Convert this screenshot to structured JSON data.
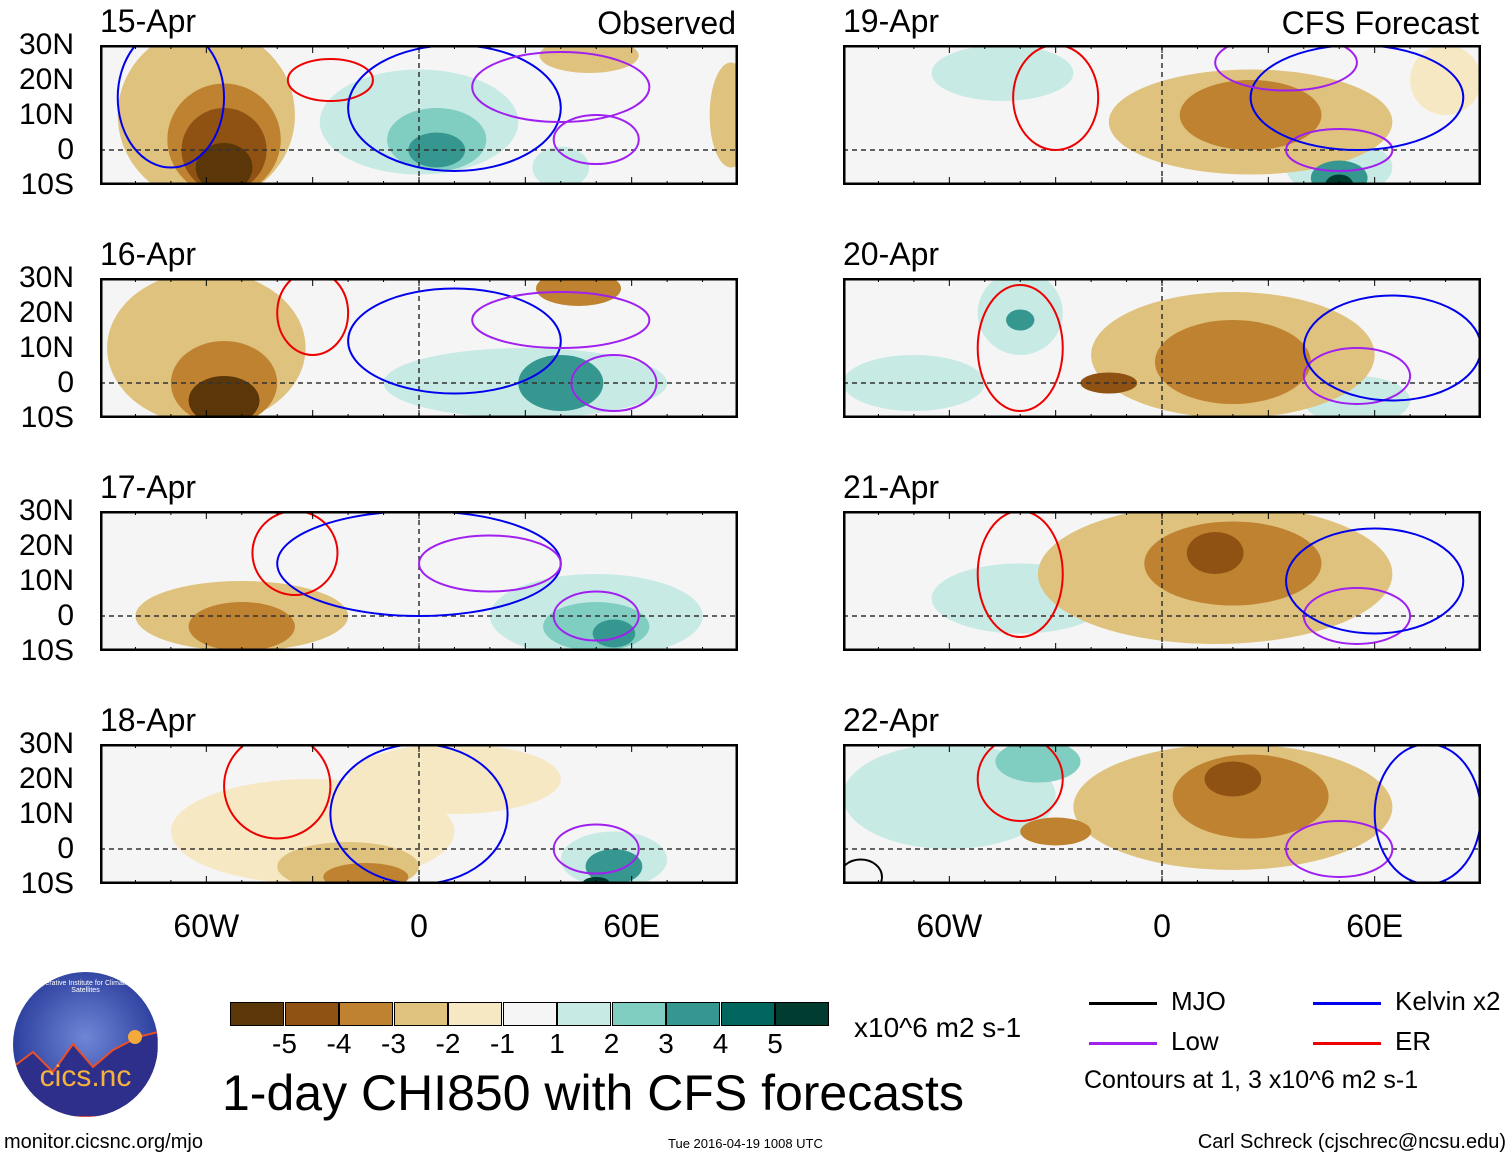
{
  "headers": {
    "left": "Observed",
    "right": "CFS Forecast"
  },
  "lat_labels": [
    "30N",
    "20N",
    "10N",
    "0",
    "10S"
  ],
  "lon_labels": [
    "60W",
    "0",
    "60E"
  ],
  "colorbar": {
    "colors": [
      "#5a3608",
      "#8f5213",
      "#be8231",
      "#dfc27d",
      "#f6e8c3",
      "#f5f5f5",
      "#c7eae5",
      "#80cdc1",
      "#35978f",
      "#01665e",
      "#003c30"
    ],
    "labels": [
      "-5",
      "-4",
      "-3",
      "-2",
      "-1",
      "1",
      "2",
      "3",
      "4",
      "5"
    ],
    "units": "x10^6 m2 s-1"
  },
  "legend": {
    "items": [
      {
        "label": "MJO",
        "color": "#000000"
      },
      {
        "label": "Kelvin x2",
        "color": "#0000ee"
      },
      {
        "label": "Low",
        "color": "#a020f0"
      },
      {
        "label": "ER",
        "color": "#ee0000"
      }
    ],
    "note": "Contours at 1, 3 x10^6 m2 s-1"
  },
  "title": "1-day CHI850 with CFS forecasts",
  "logo_text": "cics.nc",
  "logo_ring": "Cooperative Institute for Climate and Satellites",
  "footer": {
    "left": "monitor.cicsnc.org/mjo",
    "center": "Tue 2016-04-19 1008 UTC",
    "right": "Carl Schreck (cjschrec@ncsu.edu)"
  },
  "chart_data": {
    "type": "heatmap",
    "variable": "CHI850 anomaly",
    "lon_range": [
      -90,
      90
    ],
    "lat_range": [
      -10,
      30
    ],
    "panels": [
      {
        "date": "15-Apr",
        "col": "left",
        "row": 0,
        "blobs": [
          [
            -60,
            10,
            25,
            25,
            -2
          ],
          [
            -55,
            3,
            16,
            16,
            -3
          ],
          [
            -55,
            0,
            12,
            12,
            -4
          ],
          [
            -55,
            -5,
            8,
            7,
            -5
          ],
          [
            0,
            8,
            28,
            15,
            1
          ],
          [
            5,
            3,
            14,
            9,
            2
          ],
          [
            5,
            0,
            8,
            5,
            3
          ],
          [
            40,
            -5,
            8,
            6,
            1
          ],
          [
            48,
            27,
            14,
            5,
            -2
          ],
          [
            88,
            10,
            6,
            15,
            -2
          ]
        ],
        "contours": [
          [
            -70,
            15,
            15,
            20,
            "kelvin"
          ],
          [
            -25,
            20,
            12,
            6,
            "er"
          ],
          [
            10,
            12,
            30,
            18,
            "kelvin"
          ],
          [
            50,
            3,
            12,
            7,
            "low"
          ],
          [
            40,
            18,
            25,
            10,
            "low"
          ]
        ]
      },
      {
        "date": "19-Apr",
        "col": "right",
        "row": 0,
        "blobs": [
          [
            -45,
            22,
            20,
            8,
            1
          ],
          [
            25,
            8,
            40,
            15,
            -2
          ],
          [
            25,
            10,
            20,
            10,
            -3
          ],
          [
            50,
            -5,
            15,
            8,
            1
          ],
          [
            50,
            -8,
            8,
            5,
            3
          ],
          [
            50,
            -10,
            4,
            3,
            5
          ],
          [
            80,
            20,
            10,
            10,
            -1
          ]
        ],
        "contours": [
          [
            -30,
            15,
            12,
            15,
            "er"
          ],
          [
            50,
            0,
            15,
            6,
            "low"
          ],
          [
            55,
            15,
            30,
            15,
            "kelvin"
          ],
          [
            35,
            25,
            20,
            8,
            "low"
          ]
        ]
      },
      {
        "date": "16-Apr",
        "col": "left",
        "row": 1,
        "blobs": [
          [
            -60,
            10,
            28,
            22,
            -2
          ],
          [
            -55,
            0,
            15,
            12,
            -3
          ],
          [
            -55,
            -5,
            10,
            7,
            -5
          ],
          [
            30,
            0,
            40,
            10,
            1
          ],
          [
            40,
            0,
            12,
            8,
            3
          ],
          [
            45,
            27,
            12,
            5,
            -3
          ]
        ],
        "contours": [
          [
            -30,
            20,
            10,
            12,
            "er"
          ],
          [
            10,
            12,
            30,
            15,
            "kelvin"
          ],
          [
            55,
            0,
            12,
            8,
            "low"
          ],
          [
            40,
            18,
            25,
            8,
            "low"
          ]
        ]
      },
      {
        "date": "20-Apr",
        "col": "right",
        "row": 1,
        "blobs": [
          [
            -40,
            20,
            12,
            12,
            1
          ],
          [
            -40,
            18,
            4,
            3,
            3
          ],
          [
            -70,
            0,
            20,
            8,
            1
          ],
          [
            20,
            8,
            40,
            18,
            -2
          ],
          [
            20,
            6,
            22,
            12,
            -3
          ],
          [
            -15,
            0,
            8,
            3,
            -4
          ],
          [
            55,
            -5,
            15,
            7,
            1
          ]
        ],
        "contours": [
          [
            -40,
            10,
            12,
            18,
            "er"
          ],
          [
            55,
            2,
            15,
            8,
            "low"
          ],
          [
            65,
            10,
            25,
            15,
            "kelvin"
          ]
        ]
      },
      {
        "date": "17-Apr",
        "col": "left",
        "row": 2,
        "blobs": [
          [
            -50,
            0,
            30,
            10,
            -2
          ],
          [
            -50,
            -3,
            15,
            7,
            -3
          ],
          [
            50,
            0,
            30,
            12,
            1
          ],
          [
            50,
            -3,
            15,
            7,
            2
          ],
          [
            55,
            -5,
            6,
            4,
            3
          ]
        ],
        "contours": [
          [
            -35,
            18,
            12,
            12,
            "er"
          ],
          [
            0,
            15,
            40,
            15,
            "kelvin"
          ],
          [
            50,
            0,
            12,
            7,
            "low"
          ],
          [
            20,
            15,
            20,
            8,
            "low"
          ]
        ]
      },
      {
        "date": "21-Apr",
        "col": "right",
        "row": 2,
        "blobs": [
          [
            15,
            12,
            50,
            20,
            -2
          ],
          [
            20,
            15,
            25,
            12,
            -3
          ],
          [
            15,
            18,
            8,
            6,
            -4
          ],
          [
            -40,
            5,
            25,
            10,
            1
          ]
        ],
        "contours": [
          [
            -40,
            12,
            12,
            18,
            "er"
          ],
          [
            55,
            0,
            15,
            8,
            "low"
          ],
          [
            60,
            10,
            25,
            15,
            "kelvin"
          ]
        ]
      },
      {
        "date": "18-Apr",
        "col": "left",
        "row": 3,
        "blobs": [
          [
            -30,
            5,
            40,
            15,
            -1
          ],
          [
            -20,
            -5,
            20,
            7,
            -2
          ],
          [
            -15,
            -8,
            12,
            4,
            -3
          ],
          [
            55,
            -3,
            15,
            8,
            1
          ],
          [
            55,
            -5,
            8,
            5,
            3
          ],
          [
            50,
            -10,
            4,
            2,
            5
          ],
          [
            10,
            20,
            30,
            10,
            -1
          ]
        ],
        "contours": [
          [
            -40,
            18,
            15,
            15,
            "er"
          ],
          [
            0,
            10,
            25,
            20,
            "kelvin"
          ],
          [
            50,
            0,
            12,
            7,
            "low"
          ]
        ]
      },
      {
        "date": "22-Apr",
        "col": "right",
        "row": 3,
        "blobs": [
          [
            -60,
            15,
            30,
            15,
            1
          ],
          [
            -35,
            25,
            12,
            6,
            2
          ],
          [
            20,
            12,
            45,
            18,
            -2
          ],
          [
            25,
            15,
            22,
            12,
            -3
          ],
          [
            20,
            20,
            8,
            5,
            -4
          ],
          [
            -30,
            5,
            10,
            4,
            -3
          ]
        ],
        "contours": [
          [
            -40,
            20,
            12,
            12,
            "er"
          ],
          [
            50,
            0,
            15,
            8,
            "low"
          ],
          [
            75,
            10,
            15,
            20,
            "kelvin"
          ],
          [
            -85,
            -8,
            6,
            5,
            "mjo"
          ]
        ]
      }
    ]
  }
}
